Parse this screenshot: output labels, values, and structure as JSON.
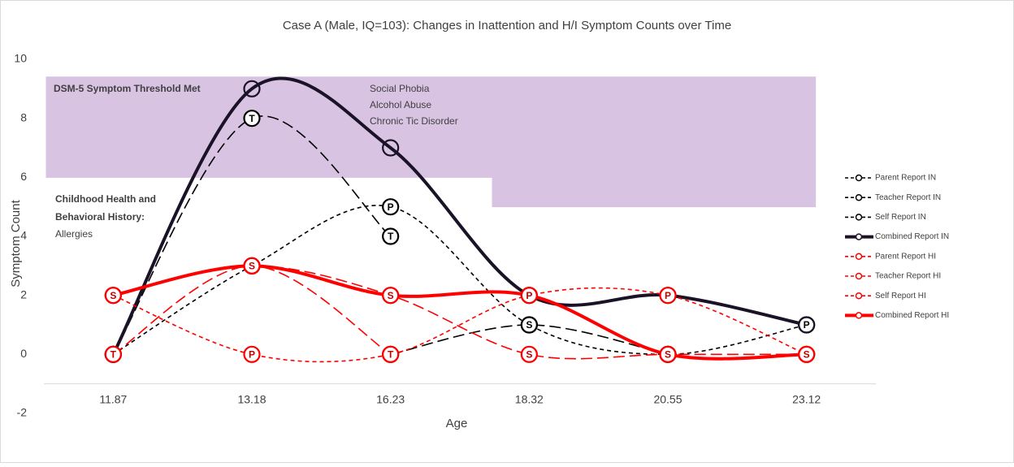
{
  "chart_data": {
    "type": "line",
    "title": "Case A (Male, IQ=103): Changes in Inattention and H/I Symptom Counts over Time",
    "x_label": "Age",
    "y_label": "Symptom Count",
    "categories": [
      "11.87",
      "13.18",
      "16.23",
      "18.32",
      "20.55",
      "23.12"
    ],
    "ylim": [
      -2,
      10
    ],
    "yticks": [
      -2,
      0,
      2,
      4,
      6,
      8,
      10
    ],
    "x_axis_at": -1,
    "grid": false,
    "legend": "right",
    "threshold": {
      "color": "#d9c3e3",
      "top": 9.4,
      "levels": [
        6,
        6,
        6,
        5,
        5,
        5
      ]
    },
    "annotations": [
      "DSM-5 Symptom Threshold Met",
      "Social Phobia",
      "Alcohol Abuse",
      "Chronic Tic Disorder",
      "Childhood Health and",
      "Behavioral History:",
      "Allergies"
    ],
    "series": [
      {
        "name": "Parent Report IN",
        "color": "#000000",
        "dash": "short",
        "width": 1.6,
        "marker": "P",
        "values": [
          0,
          3,
          5,
          1,
          0,
          1
        ]
      },
      {
        "name": "Teacher Report IN",
        "color": "#000000",
        "dash": "long",
        "width": 1.6,
        "marker": "T",
        "values": [
          0,
          8,
          4,
          null,
          null,
          null
        ]
      },
      {
        "name": "Self Report IN",
        "color": "#000000",
        "dash": "long",
        "width": 1.6,
        "marker": "S",
        "values": [
          null,
          null,
          0,
          1,
          0,
          null
        ]
      },
      {
        "name": "Combined Report IN",
        "color": "#1a1226",
        "dash": "solid",
        "width": 4,
        "values": [
          0,
          9,
          7,
          2,
          2,
          1
        ]
      },
      {
        "name": "Parent Report HI",
        "color": "#ff0000",
        "dash": "short",
        "width": 1.6,
        "marker": "P",
        "values": [
          2,
          0,
          0,
          2,
          2,
          0
        ]
      },
      {
        "name": "Teacher Report HI",
        "color": "#ff0000",
        "dash": "long",
        "width": 1.6,
        "marker": "T",
        "values": [
          0,
          3,
          0,
          null,
          null,
          null
        ]
      },
      {
        "name": "Self Report HI",
        "color": "#ff0000",
        "dash": "long",
        "width": 1.6,
        "marker": "S",
        "values": [
          2,
          3,
          2,
          0,
          0,
          0
        ]
      },
      {
        "name": "Combined Report HI",
        "color": "#ff0000",
        "dash": "solid",
        "width": 4,
        "values": [
          2,
          3,
          2,
          2,
          0,
          0
        ]
      }
    ]
  }
}
